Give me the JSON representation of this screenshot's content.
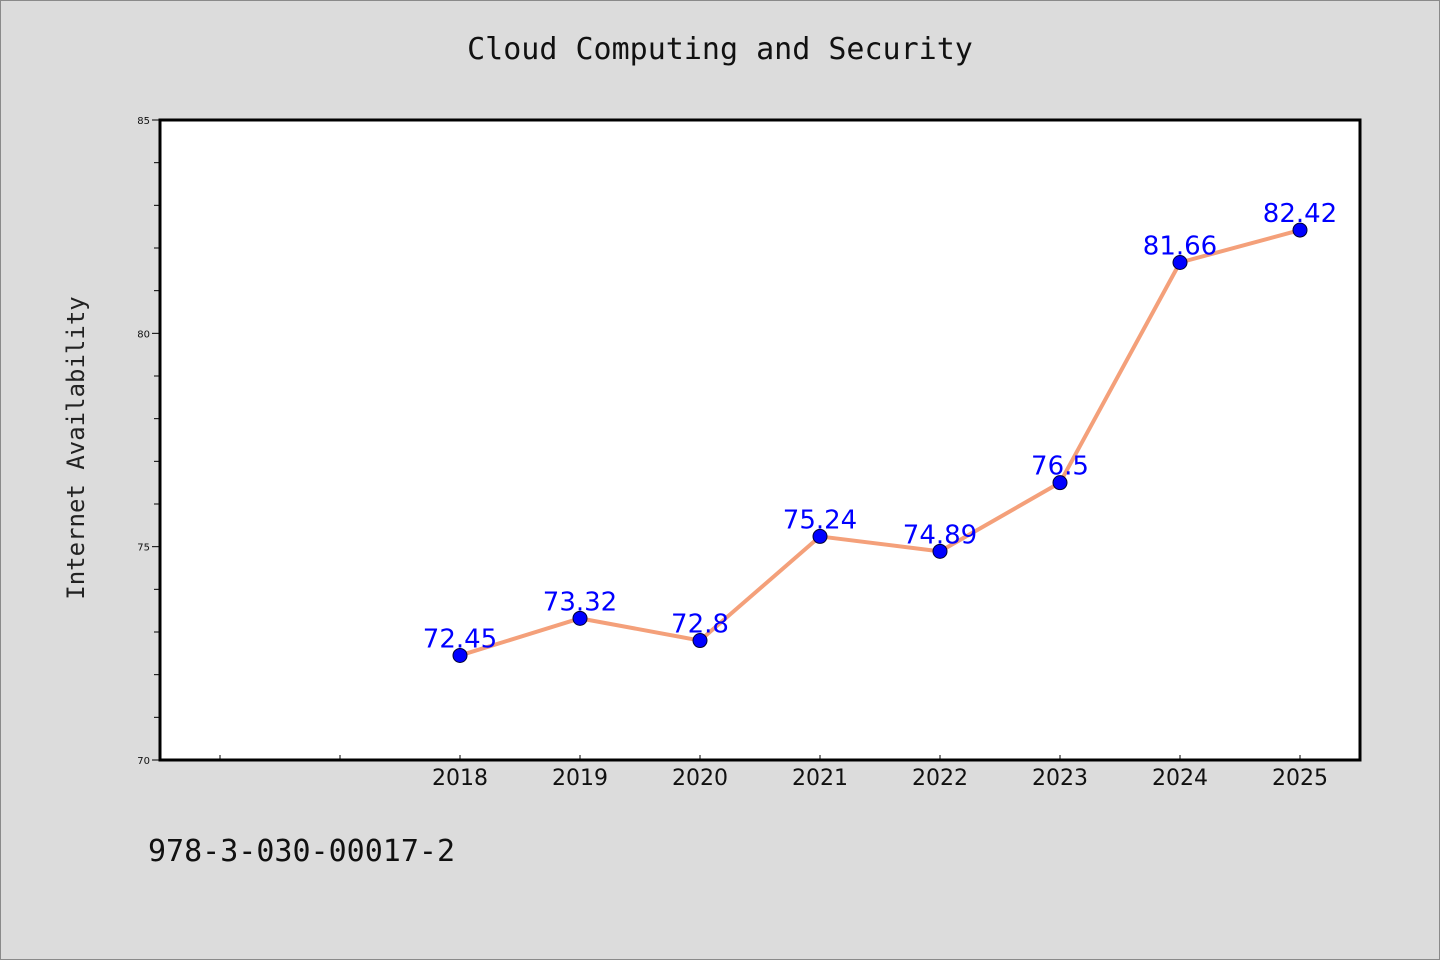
{
  "chart_data": {
    "type": "line",
    "title": "Cloud Computing and Security",
    "xlabel": "",
    "ylabel": "Internet Availability",
    "x": [
      "2018",
      "2019",
      "2020",
      "2021",
      "2022",
      "2023",
      "2024",
      "2025"
    ],
    "series": [
      {
        "values": [
          72.45,
          73.32,
          72.8,
          75.24,
          74.89,
          76.5,
          81.66,
          82.42
        ],
        "labels": [
          "72.45",
          "73.32",
          "72.8",
          "75.24",
          "74.89",
          "76.5",
          "81.66",
          "82.42"
        ]
      }
    ],
    "xlim": [
      2015.5,
      2025.5
    ],
    "ylim": [
      70,
      85
    ],
    "yticks": [
      "70",
      "75",
      "80",
      "85"
    ],
    "grid": false,
    "colors": {
      "line": "#f4a07a",
      "marker": "#0000ff",
      "data_label": "#0000ff",
      "background": "#dcdcdc",
      "plot_background": "#ffffff"
    }
  },
  "footer": {
    "isbn": "978-3-030-00017-2"
  }
}
